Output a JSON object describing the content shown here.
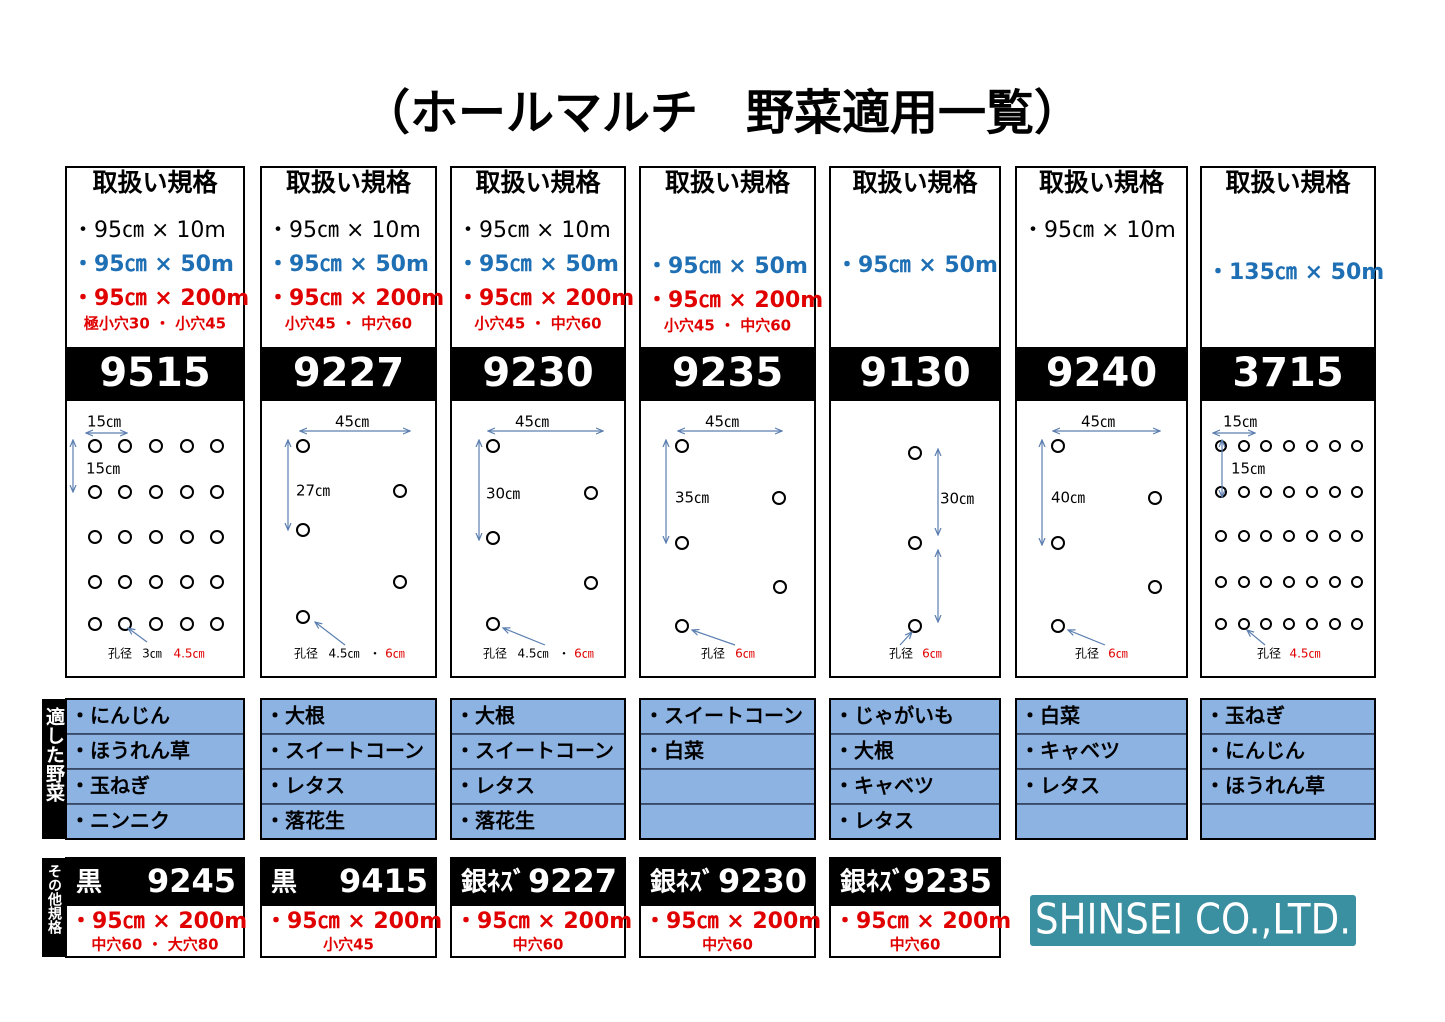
{
  "title": "（ホールマルチ　野菜適用一覧）",
  "products": [
    {
      "header": "取扱い規格",
      "specs": [
        {
          "text": "・95㎝ × 10m",
          "color": "#000000"
        },
        {
          "text": "・95㎝ × 50m",
          "color": "#1f6fb4"
        },
        {
          "text": "・95㎝ × 200m",
          "color": "#e00000"
        }
      ],
      "note": "極小穴30 ・ 小穴45",
      "code": "9515",
      "diagram": {
        "dims": [
          "15㎝",
          "15㎝"
        ],
        "hole": [
          {
            "text": "孔径",
            "color": "#000000"
          },
          {
            "text": "3㎝",
            "color": "#000000"
          },
          {
            "text": "4.5㎝",
            "color": "#e00000"
          }
        ]
      }
    },
    {
      "header": "取扱い規格",
      "specs": [
        {
          "text": "・95㎝ × 10m",
          "color": "#000000"
        },
        {
          "text": "・95㎝ × 50m",
          "color": "#1f6fb4"
        },
        {
          "text": "・95㎝ × 200m",
          "color": "#e00000"
        }
      ],
      "note": "小穴45 ・ 中穴60",
      "code": "9227",
      "diagram": {
        "dims": [
          "45㎝",
          "27㎝"
        ],
        "hole": [
          {
            "text": "孔径",
            "color": "#000000"
          },
          {
            "text": "4.5㎝",
            "color": "#000000"
          },
          {
            "text": "・",
            "color": "#000000"
          },
          {
            "text": "6㎝",
            "color": "#e00000"
          }
        ]
      }
    },
    {
      "header": "取扱い規格",
      "specs": [
        {
          "text": "・95㎝ × 10m",
          "color": "#000000"
        },
        {
          "text": "・95㎝ × 50m",
          "color": "#1f6fb4"
        },
        {
          "text": "・95㎝ × 200m",
          "color": "#e00000"
        }
      ],
      "note": "小穴45 ・ 中穴60",
      "code": "9230",
      "diagram": {
        "dims": [
          "45㎝",
          "30㎝"
        ],
        "hole": [
          {
            "text": "孔径",
            "color": "#000000"
          },
          {
            "text": "4.5㎝",
            "color": "#000000"
          },
          {
            "text": "・",
            "color": "#000000"
          },
          {
            "text": "6㎝",
            "color": "#e00000"
          }
        ]
      }
    },
    {
      "header": "取扱い規格",
      "specs": [
        {
          "text": "・95㎝ × 50m",
          "color": "#1f6fb4"
        },
        {
          "text": "・95㎝ × 200m",
          "color": "#e00000"
        }
      ],
      "note": "小穴45 ・ 中穴60",
      "code": "9235",
      "diagram": {
        "dims": [
          "45㎝",
          "35㎝"
        ],
        "hole": [
          {
            "text": "孔径",
            "color": "#000000"
          },
          {
            "text": "6㎝",
            "color": "#e00000"
          }
        ]
      }
    },
    {
      "header": "取扱い規格",
      "specs": [
        {
          "text": "・95㎝ × 50m",
          "color": "#1f6fb4"
        }
      ],
      "code": "9130",
      "diagram": {
        "dims": [
          "30㎝"
        ],
        "hole": [
          {
            "text": "孔径",
            "color": "#000000"
          },
          {
            "text": "6㎝",
            "color": "#e00000"
          }
        ]
      }
    },
    {
      "header": "取扱い規格",
      "specs": [
        {
          "text": "・95㎝ × 10m",
          "color": "#000000"
        }
      ],
      "code": "9240",
      "diagram": {
        "dims": [
          "45㎝",
          "40㎝"
        ],
        "hole": [
          {
            "text": "孔径",
            "color": "#000000"
          },
          {
            "text": "6㎝",
            "color": "#e00000"
          }
        ]
      }
    },
    {
      "header": "取扱い規格",
      "specs": [
        {
          "text": "・135㎝ × 50m",
          "color": "#1f6fb4"
        }
      ],
      "code": "3715",
      "diagram": {
        "dims": [
          "15㎝",
          "15㎝"
        ],
        "hole": [
          {
            "text": "孔径",
            "color": "#000000"
          },
          {
            "text": "4.5㎝",
            "color": "#e00000"
          }
        ]
      }
    }
  ],
  "vegetables": {
    "label": "適した野菜",
    "columns": [
      [
        "・にんじん",
        "・ほうれん草",
        "・玉ねぎ",
        "・ニンニク"
      ],
      [
        "・大根",
        "・スイートコーン",
        "・レタス",
        "・落花生"
      ],
      [
        "・大根",
        "・スイートコーン",
        "・レタス",
        "・落花生"
      ],
      [
        "・スイートコーン",
        "・白菜"
      ],
      [
        "・じゃがいも",
        "・大根",
        "・キャベツ",
        "・レタス"
      ],
      [
        "・白菜",
        "・キャベツ",
        "・レタス"
      ],
      [
        "・玉ねぎ",
        "・にんじん",
        "・ほうれん草"
      ]
    ]
  },
  "others": {
    "label": "その他規格",
    "items": [
      {
        "name": "黒",
        "code": "9245",
        "spec": "・95㎝ × 200m",
        "note": "中穴60 ・ 大穴80"
      },
      {
        "name": "黒",
        "code": "9415",
        "spec": "・95㎝ × 200m",
        "note": "小穴45"
      },
      {
        "name": "銀ﾈｽﾞ",
        "code": "9227",
        "spec": "・95㎝ × 200m",
        "note": "中穴60"
      },
      {
        "name": "銀ﾈｽﾞ",
        "code": "9230",
        "spec": "・95㎝ × 200m",
        "note": "中穴60"
      },
      {
        "name": "銀ﾈｽﾞ",
        "code": "9235",
        "spec": "・95㎝ × 200m",
        "note": "中穴60"
      }
    ]
  },
  "logo": "SHINSEI CO.,LTD."
}
